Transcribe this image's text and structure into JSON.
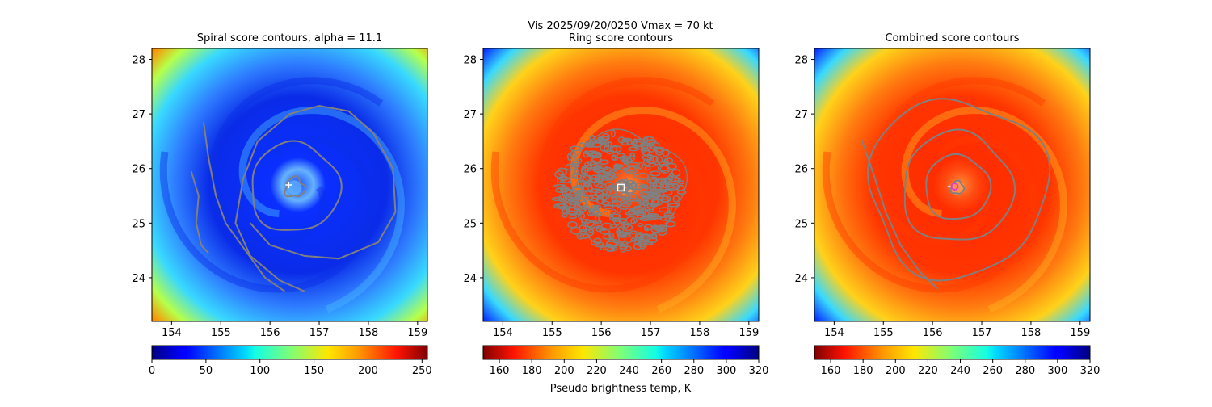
{
  "suptitle": "Vis  2025/09/20/0250    Vmax = 70 kt",
  "colorbar_label": "Pseudo brightness temp, K",
  "chart_data": [
    {
      "type": "heatmap",
      "title": "Spiral score contours, alpha = 11.1",
      "colormap": "jet",
      "xlim": [
        153.6,
        159.2
      ],
      "ylim": [
        23.2,
        28.2
      ],
      "xticks": [
        "154",
        "155",
        "156",
        "157",
        "158",
        "159"
      ],
      "yticks": [
        "24",
        "25",
        "26",
        "27",
        "28"
      ],
      "colorbar": {
        "range": [
          0,
          255
        ],
        "ticks": [
          "0",
          "50",
          "100",
          "150",
          "200",
          "250"
        ],
        "reversed": false
      },
      "center": [
        156.5,
        25.65
      ],
      "marker": {
        "symbol": "+",
        "x": 156.38,
        "y": 25.7,
        "color": "#ffffff"
      },
      "contours": "spiral"
    },
    {
      "type": "heatmap",
      "title": "Ring score contours",
      "colormap": "jet_r",
      "xlim": [
        153.6,
        159.2
      ],
      "ylim": [
        23.2,
        28.2
      ],
      "xticks": [
        "154",
        "155",
        "156",
        "157",
        "158",
        "159"
      ],
      "yticks": [
        "24",
        "25",
        "26",
        "27",
        "28"
      ],
      "colorbar": {
        "range": [
          150,
          320
        ],
        "ticks": [
          "160",
          "180",
          "200",
          "220",
          "240",
          "260",
          "280",
          "300",
          "320"
        ],
        "reversed": true
      },
      "center": [
        156.5,
        25.65
      ],
      "marker": {
        "symbol": "square",
        "x": 156.4,
        "y": 25.65,
        "color": "#ffffff"
      },
      "contours": "ring"
    },
    {
      "type": "heatmap",
      "title": "Combined score contours",
      "colormap": "jet_r",
      "xlim": [
        153.6,
        159.2
      ],
      "ylim": [
        23.2,
        28.2
      ],
      "xticks": [
        "154",
        "155",
        "156",
        "157",
        "158",
        "159"
      ],
      "yticks": [
        "24",
        "25",
        "26",
        "27",
        "28"
      ],
      "colorbar": {
        "range": [
          150,
          320
        ],
        "ticks": [
          "160",
          "180",
          "200",
          "220",
          "240",
          "260",
          "280",
          "300",
          "320"
        ],
        "reversed": true
      },
      "center": [
        156.5,
        25.65
      ],
      "marker": {
        "symbol": "circle",
        "x": 156.45,
        "y": 25.67,
        "color": "#e040c0"
      },
      "contours": "combined"
    }
  ],
  "colors": {
    "contour": "#808080",
    "axis": "#000000"
  }
}
